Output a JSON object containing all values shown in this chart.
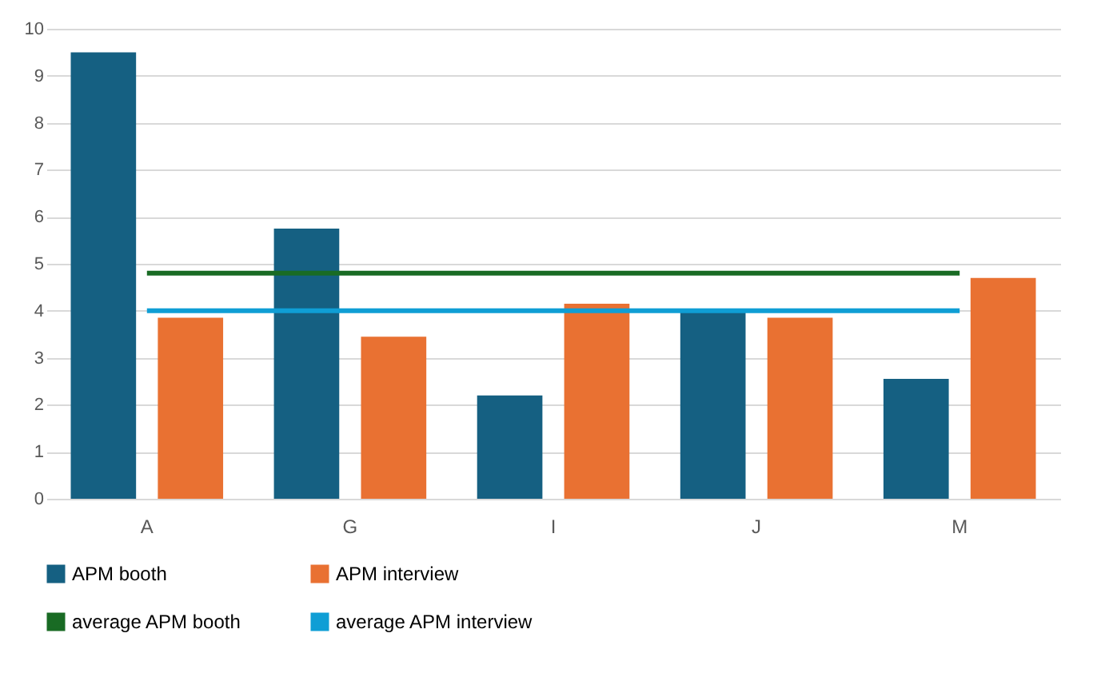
{
  "chart_data": {
    "type": "bar",
    "categories": [
      "A",
      "G",
      "I",
      "J",
      "M"
    ],
    "series": [
      {
        "name": "APM booth",
        "color": "#156082",
        "values": [
          9.5,
          5.75,
          2.2,
          4.0,
          2.55
        ]
      },
      {
        "name": "APM interview",
        "color": "#e97132",
        "values": [
          3.85,
          3.45,
          4.15,
          3.85,
          4.7
        ]
      },
      {
        "name": "average APM booth",
        "type": "line",
        "color": "#196b24",
        "values": [
          4.8,
          4.8,
          4.8,
          4.8,
          4.8
        ]
      },
      {
        "name": "average APM interview",
        "type": "line",
        "color": "#0f9ed5",
        "values": [
          4.0,
          4.0,
          4.0,
          4.0,
          4.0
        ]
      }
    ],
    "ylim": [
      0,
      10
    ],
    "yticks": [
      0,
      1,
      2,
      3,
      4,
      5,
      6,
      7,
      8,
      9,
      10
    ],
    "grid": "y",
    "legend": "bottom"
  }
}
